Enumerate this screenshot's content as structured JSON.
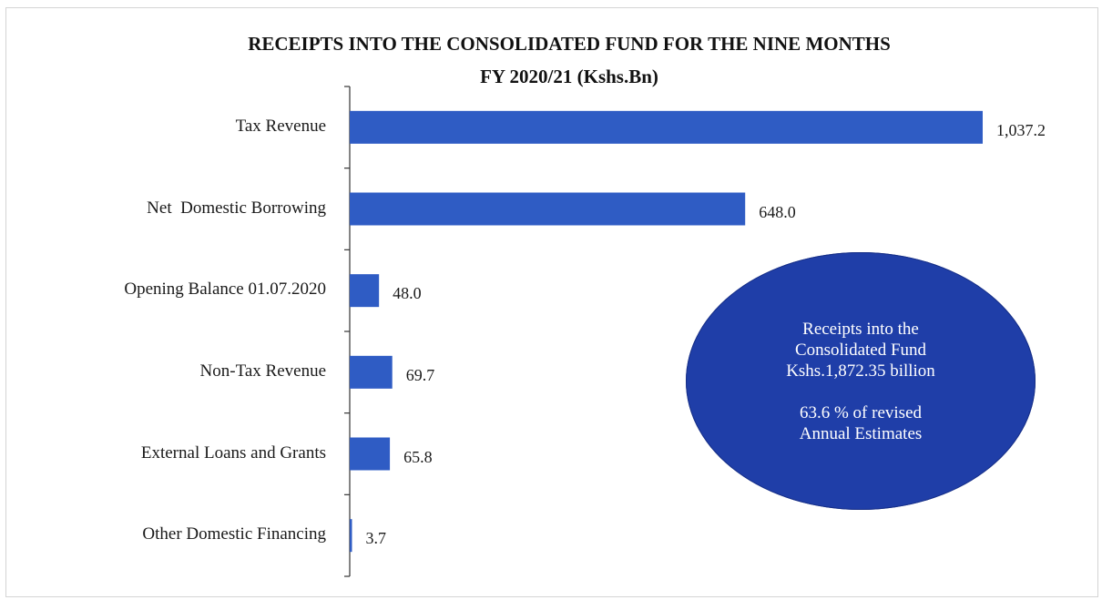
{
  "chart_data": {
    "type": "bar",
    "orientation": "horizontal",
    "title": "RECEIPTS INTO THE CONSOLIDATED FUND FOR THE NINE MONTHS",
    "subtitle": "FY 2020/21 (Kshs.Bn)",
    "categories": [
      "Tax Revenue",
      "Net  Domestic Borrowing",
      "Opening Balance 01.07.2020",
      "Non-Tax Revenue",
      "External Loans and Grants",
      "Other Domestic Financing"
    ],
    "values": [
      1037.2,
      648.0,
      48.0,
      69.7,
      65.8,
      3.7
    ],
    "value_labels": [
      "1,037.2",
      "648.0",
      "48.0",
      "69.7",
      "65.8",
      "3.7"
    ],
    "xlim": [
      0,
      1037.2
    ],
    "grid": false,
    "legend": "none",
    "bar_color": "#2f5cc4"
  },
  "callout": {
    "line1": "Receipts into the",
    "line2": "Consolidated Fund",
    "line3": "Kshs.1,872.35 billion",
    "line4": "63.6 % of revised",
    "line5": "Annual Estimates",
    "color": "#1f3ea8"
  }
}
